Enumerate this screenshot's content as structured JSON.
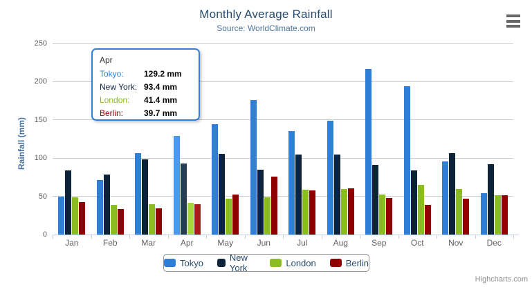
{
  "chart": {
    "title": "Monthly Average Rainfall",
    "subtitle": "Source: WorldClimate.com",
    "yaxis_title": "Rainfall (mm)",
    "credit": "Highcharts.com"
  },
  "chart_data": {
    "type": "bar",
    "title": "Monthly Average Rainfall",
    "subtitle": "Source: WorldClimate.com",
    "xlabel": "",
    "ylabel": "Rainfall (mm)",
    "ylim": [
      0,
      250
    ],
    "yticks": [
      0,
      50,
      100,
      150,
      200,
      250
    ],
    "grid": true,
    "legend_position": "bottom",
    "hovered_category": "Apr",
    "categories": [
      "Jan",
      "Feb",
      "Mar",
      "Apr",
      "May",
      "Jun",
      "Jul",
      "Aug",
      "Sep",
      "Oct",
      "Nov",
      "Dec"
    ],
    "series": [
      {
        "name": "Tokyo",
        "color": "#2f7ed8",
        "values": [
          49.9,
          71.5,
          106.4,
          129.2,
          144.0,
          176.0,
          135.6,
          148.5,
          216.4,
          194.1,
          95.6,
          54.4
        ]
      },
      {
        "name": "New York",
        "color": "#0d233a",
        "values": [
          83.6,
          78.8,
          98.5,
          93.4,
          106.0,
          84.5,
          105.0,
          104.3,
          91.2,
          83.5,
          106.6,
          92.3
        ]
      },
      {
        "name": "London",
        "color": "#8bbc21",
        "values": [
          48.9,
          38.8,
          39.3,
          41.4,
          47.0,
          48.3,
          59.0,
          59.6,
          52.4,
          65.2,
          59.3,
          51.2
        ]
      },
      {
        "name": "Berlin",
        "color": "#910000",
        "values": [
          42.4,
          33.2,
          34.5,
          39.7,
          52.6,
          75.5,
          57.4,
          60.4,
          47.6,
          39.1,
          46.8,
          51.1
        ]
      }
    ]
  },
  "tooltip": {
    "header": "Apr",
    "border_color": "#2f7ed8",
    "rows": [
      {
        "label": "Tokyo:",
        "value": "129.2 mm",
        "color": "#2f7ed8"
      },
      {
        "label": "New York:",
        "value": "93.4 mm",
        "color": "#0d233a"
      },
      {
        "label": "London:",
        "value": "41.4 mm",
        "color": "#8bbc21"
      },
      {
        "label": "Berlin:",
        "value": "39.7 mm",
        "color": "#910000"
      }
    ]
  },
  "legend": {
    "items": [
      {
        "label": "Tokyo",
        "color": "#2f7ed8"
      },
      {
        "label": "New York",
        "color": "#0d233a"
      },
      {
        "label": "London",
        "color": "#8bbc21"
      },
      {
        "label": "Berlin",
        "color": "#910000"
      }
    ]
  }
}
